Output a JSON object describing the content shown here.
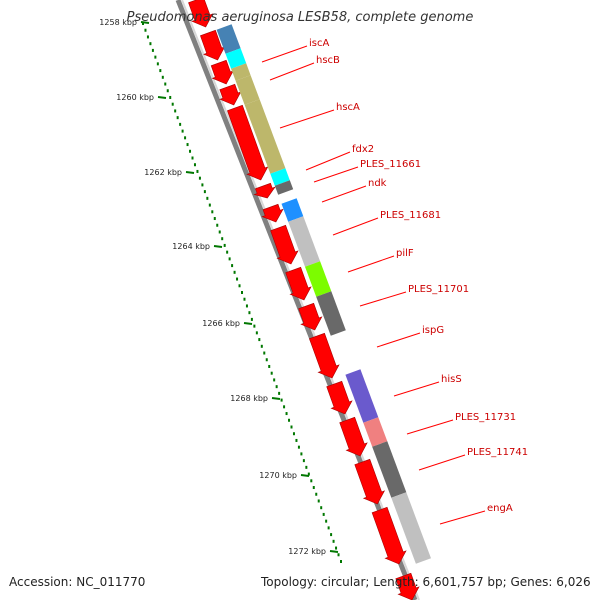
{
  "title": "Pseudomonas aeruginosa LESB58, complete genome",
  "footer": {
    "accession": "Accession: NC_011770",
    "summary": "Topology: circular; Length: 6,601,757 bp; Genes: 6,026"
  },
  "scale_ticks": [
    "1258 kbp",
    "1260 kbp",
    "1262 kbp",
    "1264 kbp",
    "1266 kbp",
    "1268 kbp",
    "1270 kbp",
    "1272 kbp"
  ],
  "colors": {
    "gene_arrow": "#ff0000",
    "backbone": "#808080",
    "scale_green": "#007700",
    "label_line": "#ff0000"
  },
  "features": [
    {
      "id": "iscA",
      "label": "iscA",
      "color": "#4682b4"
    },
    {
      "id": "hscB",
      "label": "hscB",
      "color": "#00ffff"
    },
    {
      "id": "hscA",
      "label": "hscA",
      "color": "#bdb76b"
    },
    {
      "id": "fdx2",
      "label": "fdx2",
      "color": "#00ffff"
    },
    {
      "id": "PLES_11661",
      "label": "PLES_11661",
      "color": "#696969"
    },
    {
      "id": "ndk",
      "label": "ndk",
      "color": "#1e90ff"
    },
    {
      "id": "PLES_11681",
      "label": "PLES_11681",
      "color": "#c0c0c0"
    },
    {
      "id": "pilF",
      "label": "pilF",
      "color": "#7cfc00"
    },
    {
      "id": "PLES_11701",
      "label": "PLES_11701",
      "color": "#696969"
    },
    {
      "id": "ispG",
      "label": "ispG",
      "color": "#6a5acd"
    },
    {
      "id": "hisS",
      "label": "hisS",
      "color": "#f08080"
    },
    {
      "id": "PLES_11731",
      "label": "PLES_11731",
      "color": "#696969"
    },
    {
      "id": "PLES_11741",
      "label": "PLES_11741",
      "color": "#696969"
    },
    {
      "id": "engA",
      "label": "engA",
      "color": "#c0c0c0"
    }
  ]
}
